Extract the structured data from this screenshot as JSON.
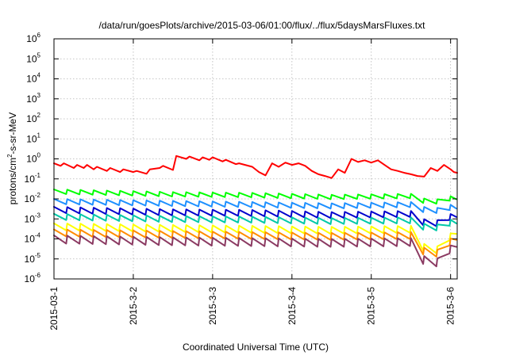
{
  "chart_data": {
    "type": "line",
    "title": "/data/run/goesPlots/archive/2015-03-06/01:00/flux/../flux/5daysMarsFluxes.txt",
    "xlabel": "Coordinated Universal Time (UTC)",
    "ylabel": {
      "prefix": "protons/cm",
      "superscript": "2",
      "suffix": "-s-sr-MeV"
    },
    "yscale": "log",
    "grid": true,
    "legend": "none",
    "xlim": [
      "2015-03-01T00:00",
      "2015-03-06T02:00"
    ],
    "ylim": [
      1e-06,
      1000000.0
    ],
    "x_ticks": [
      {
        "label": "2015-03-1",
        "value": "2015-03-01T00:00"
      },
      {
        "label": "2015-3-2",
        "value": "2015-03-02T00:00"
      },
      {
        "label": "2015-3-3",
        "value": "2015-03-03T00:00"
      },
      {
        "label": "2015-3-4",
        "value": "2015-03-04T00:00"
      },
      {
        "label": "2015-3-5",
        "value": "2015-03-05T00:00"
      },
      {
        "label": "2015-3-6",
        "value": "2015-03-06T00:00"
      }
    ],
    "y_ticks": [
      {
        "base": "10",
        "exp": "-6",
        "value": 1e-06
      },
      {
        "base": "10",
        "exp": "-5",
        "value": 1e-05
      },
      {
        "base": "10",
        "exp": "-4",
        "value": 0.0001
      },
      {
        "base": "10",
        "exp": "-3",
        "value": 0.001
      },
      {
        "base": "10",
        "exp": "-2",
        "value": 0.01
      },
      {
        "base": "10",
        "exp": "-1",
        "value": 0.1
      },
      {
        "base": "10",
        "exp": "0",
        "value": 1
      },
      {
        "base": "10",
        "exp": "1",
        "value": 10
      },
      {
        "base": "10",
        "exp": "2",
        "value": 100
      },
      {
        "base": "10",
        "exp": "3",
        "value": 1000
      },
      {
        "base": "10",
        "exp": "4",
        "value": 10000
      },
      {
        "base": "10",
        "exp": "5",
        "value": 100000
      },
      {
        "base": "10",
        "exp": "6",
        "value": 1000000
      }
    ],
    "series": [
      {
        "color": "#ff0000",
        "x": [
          "2015-03-01T00:00",
          "2015-03-01T02:00",
          "2015-03-01T03:00",
          "2015-03-01T06:00",
          "2015-03-01T07:00",
          "2015-03-01T09:00",
          "2015-03-01T10:00",
          "2015-03-01T12:00",
          "2015-03-01T13:00",
          "2015-03-01T16:00",
          "2015-03-01T17:00",
          "2015-03-01T20:00",
          "2015-03-01T21:00",
          "2015-03-02T00:00",
          "2015-03-02T01:00",
          "2015-03-02T04:00",
          "2015-03-02T05:00",
          "2015-03-02T08:00",
          "2015-03-02T09:00",
          "2015-03-02T12:00",
          "2015-03-02T13:00",
          "2015-03-02T16:00",
          "2015-03-02T17:00",
          "2015-03-02T20:00",
          "2015-03-02T21:00",
          "2015-03-02T23:00",
          "2015-03-03T00:00",
          "2015-03-03T03:00",
          "2015-03-03T04:00",
          "2015-03-03T07:00",
          "2015-03-03T08:00",
          "2015-03-03T12:00",
          "2015-03-03T14:00",
          "2015-03-03T16:00",
          "2015-03-03T18:00",
          "2015-03-03T20:00",
          "2015-03-03T22:00",
          "2015-03-04T00:00",
          "2015-03-04T02:00",
          "2015-03-04T04:00",
          "2015-03-04T06:00",
          "2015-03-04T08:00",
          "2015-03-04T10:00",
          "2015-03-04T12:00",
          "2015-03-04T14:00",
          "2015-03-04T16:00",
          "2015-03-04T18:00",
          "2015-03-04T20:00",
          "2015-03-04T22:00",
          "2015-03-05T00:00",
          "2015-03-05T02:00",
          "2015-03-05T04:00",
          "2015-03-05T06:00",
          "2015-03-05T08:00",
          "2015-03-05T10:00",
          "2015-03-05T12:00",
          "2015-03-05T14:00",
          "2015-03-05T16:00",
          "2015-03-05T18:00",
          "2015-03-05T20:00",
          "2015-03-05T22:00",
          "2015-03-06T00:00",
          "2015-03-06T01:00",
          "2015-03-06T02:00"
        ],
        "y": [
          0.6,
          0.45,
          0.6,
          0.35,
          0.5,
          0.35,
          0.5,
          0.3,
          0.4,
          0.25,
          0.35,
          0.22,
          0.3,
          0.22,
          0.25,
          0.18,
          0.3,
          0.35,
          0.45,
          0.28,
          1.4,
          1.0,
          1.3,
          0.85,
          1.2,
          0.9,
          1.2,
          0.75,
          0.9,
          0.55,
          0.6,
          0.4,
          0.22,
          0.15,
          0.6,
          0.4,
          0.65,
          0.5,
          0.6,
          0.45,
          0.25,
          0.17,
          0.14,
          0.11,
          0.3,
          0.2,
          1.0,
          0.7,
          0.85,
          0.65,
          0.85,
          0.5,
          0.3,
          0.25,
          0.2,
          0.17,
          0.14,
          0.13,
          0.35,
          0.25,
          0.5,
          0.3,
          0.22,
          0.2
        ]
      },
      {
        "color": "#00ff00",
        "x": [
          "2015-03-01T00:00",
          "2015-03-02T12:00",
          "2015-03-03T12:00",
          "2015-03-04T12:00",
          "2015-03-05T12:00",
          "2015-03-05T18:00",
          "2015-03-06T02:00"
        ],
        "y": [
          0.03,
          0.022,
          0.02,
          0.016,
          0.018,
          0.008,
          0.016
        ],
        "sawtooth": {
          "period_hours": 4,
          "drop_factor": 0.6
        }
      },
      {
        "color": "#1e90ff",
        "x": [
          "2015-03-01T00:00",
          "2015-03-02T12:00",
          "2015-03-03T12:00",
          "2015-03-04T12:00",
          "2015-03-05T12:00",
          "2015-03-05T18:00",
          "2015-03-06T02:00"
        ],
        "y": [
          0.01,
          0.008,
          0.007,
          0.006,
          0.007,
          0.003,
          0.006
        ],
        "sawtooth": {
          "period_hours": 4,
          "drop_factor": 0.55
        }
      },
      {
        "color": "#0000cd",
        "x": [
          "2015-03-01T00:00",
          "2015-03-02T12:00",
          "2015-03-03T12:00",
          "2015-03-04T12:00",
          "2015-03-05T12:00",
          "2015-03-05T18:00",
          "2015-03-06T02:00"
        ],
        "y": [
          0.004,
          0.003,
          0.0028,
          0.0022,
          0.0025,
          0.0006,
          0.0025
        ],
        "sawtooth": {
          "period_hours": 4,
          "drop_factor": 0.5
        }
      },
      {
        "color": "#00c8a8",
        "x": [
          "2015-03-01T00:00",
          "2015-03-02T12:00",
          "2015-03-03T12:00",
          "2015-03-04T12:00",
          "2015-03-05T12:00",
          "2015-03-05T18:00",
          "2015-03-06T02:00"
        ],
        "y": [
          0.0018,
          0.0014,
          0.0013,
          0.0011,
          0.0012,
          0.0004,
          0.0012
        ],
        "sawtooth": {
          "period_hours": 4,
          "drop_factor": 0.5
        }
      },
      {
        "color": "#ffff00",
        "x": [
          "2015-03-01T00:00",
          "2015-03-02T12:00",
          "2015-03-03T12:00",
          "2015-03-04T12:00",
          "2015-03-05T12:00",
          "2015-03-05T18:00",
          "2015-03-06T02:00"
        ],
        "y": [
          0.0006,
          0.0005,
          0.00045,
          0.0004,
          0.00045,
          2e-05,
          0.0004
        ],
        "sawtooth": {
          "period_hours": 4,
          "drop_factor": 0.45
        }
      },
      {
        "color": "#ff8c00",
        "x": [
          "2015-03-01T00:00",
          "2015-03-02T12:00",
          "2015-03-03T12:00",
          "2015-03-04T12:00",
          "2015-03-05T12:00",
          "2015-03-05T18:00",
          "2015-03-06T02:00"
        ],
        "y": [
          0.0003,
          0.00025,
          0.00022,
          0.0002,
          0.00022,
          1.5e-05,
          0.0002
        ],
        "sawtooth": {
          "period_hours": 4,
          "drop_factor": 0.45
        }
      },
      {
        "color": "#8b3a62",
        "x": [
          "2015-03-01T00:00",
          "2015-03-02T12:00",
          "2015-03-03T12:00",
          "2015-03-04T12:00",
          "2015-03-05T12:00",
          "2015-03-05T18:00",
          "2015-03-06T02:00"
        ],
        "y": [
          0.00015,
          0.00012,
          0.00011,
          0.0001,
          0.00011,
          5e-06,
          0.0001
        ],
        "sawtooth": {
          "period_hours": 4,
          "drop_factor": 0.4
        }
      }
    ]
  }
}
